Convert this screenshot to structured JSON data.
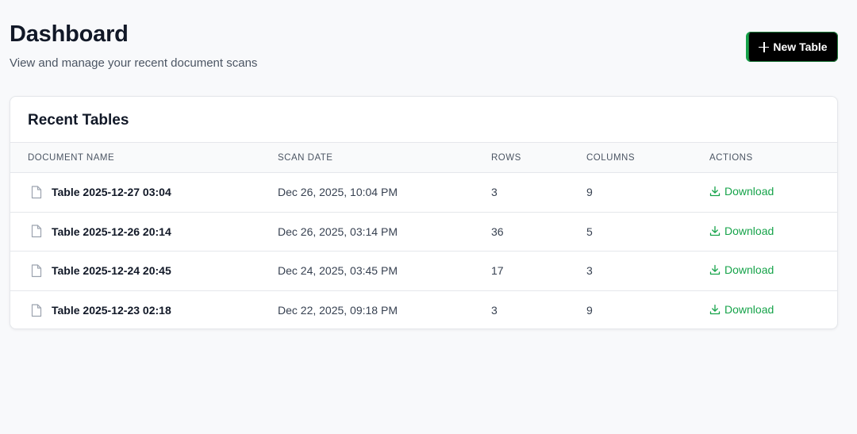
{
  "header": {
    "title": "Dashboard",
    "subtitle": "View and manage your recent document scans",
    "new_table_label": "New Table"
  },
  "card": {
    "title": "Recent Tables",
    "columns": [
      "DOCUMENT NAME",
      "SCAN DATE",
      "ROWS",
      "COLUMNS",
      "ACTIONS"
    ],
    "rows": [
      {
        "name": "Table 2025-12-27 03:04",
        "scan_date": "Dec 26, 2025, 10:04 PM",
        "rows": "3",
        "columns": "9",
        "action": "Download"
      },
      {
        "name": "Table 2025-12-26 20:14",
        "scan_date": "Dec 26, 2025, 03:14 PM",
        "rows": "36",
        "columns": "5",
        "action": "Download"
      },
      {
        "name": "Table 2025-12-24 20:45",
        "scan_date": "Dec 24, 2025, 03:45 PM",
        "rows": "17",
        "columns": "3",
        "action": "Download"
      },
      {
        "name": "Table 2025-12-23 02:18",
        "scan_date": "Dec 22, 2025, 09:18 PM",
        "rows": "3",
        "columns": "9",
        "action": "Download"
      }
    ]
  },
  "icons": {
    "new_table": "plus-icon",
    "file": "file-icon",
    "download": "download-icon"
  },
  "colors": {
    "accent": "#16a34a",
    "button_bg": "#000000",
    "page_bg": "#f8f9fb"
  }
}
